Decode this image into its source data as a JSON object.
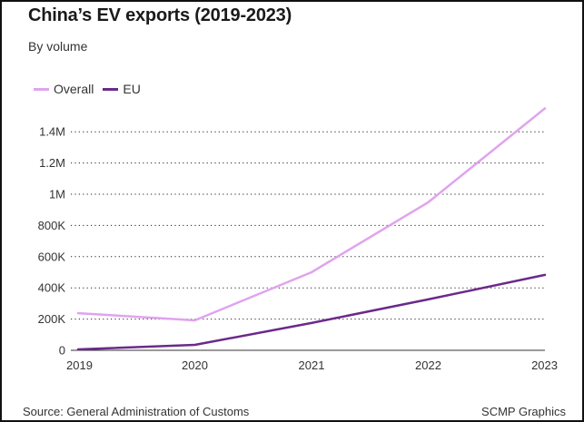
{
  "header": {
    "title": "China’s EV exports (2019-2023)",
    "subtitle": "By volume"
  },
  "footer": {
    "source": "Source: General Administration of Customs",
    "credit": "SCMP Graphics"
  },
  "legend": [
    {
      "label": "Overall",
      "color": "#e0a3ef"
    },
    {
      "label": "EU",
      "color": "#6a2a8a"
    }
  ],
  "chart_data": {
    "type": "line",
    "title": "China’s EV exports (2019-2023)",
    "subtitle": "By volume",
    "xlabel": "",
    "ylabel": "",
    "x": [
      "2019",
      "2020",
      "2021",
      "2022",
      "2023"
    ],
    "series": [
      {
        "name": "Overall",
        "color": "#e0a3ef",
        "values": [
          238000,
          192000,
          500000,
          948000,
          1550000
        ]
      },
      {
        "name": "EU",
        "color": "#6a2a8a",
        "values": [
          6000,
          35000,
          175000,
          326000,
          483000
        ]
      }
    ],
    "ylim": [
      0,
      1550000
    ],
    "yticks": [
      0,
      200000,
      400000,
      600000,
      800000,
      1000000,
      1200000,
      1400000
    ],
    "ytick_labels": [
      "0",
      "200K",
      "400K",
      "600K",
      "800K",
      "1M",
      "1.2M",
      "1.4M"
    ],
    "grid": "horizontal-dotted",
    "legend_position": "top-left",
    "source": "Source: General Administration of Customs",
    "credit": "SCMP Graphics"
  }
}
